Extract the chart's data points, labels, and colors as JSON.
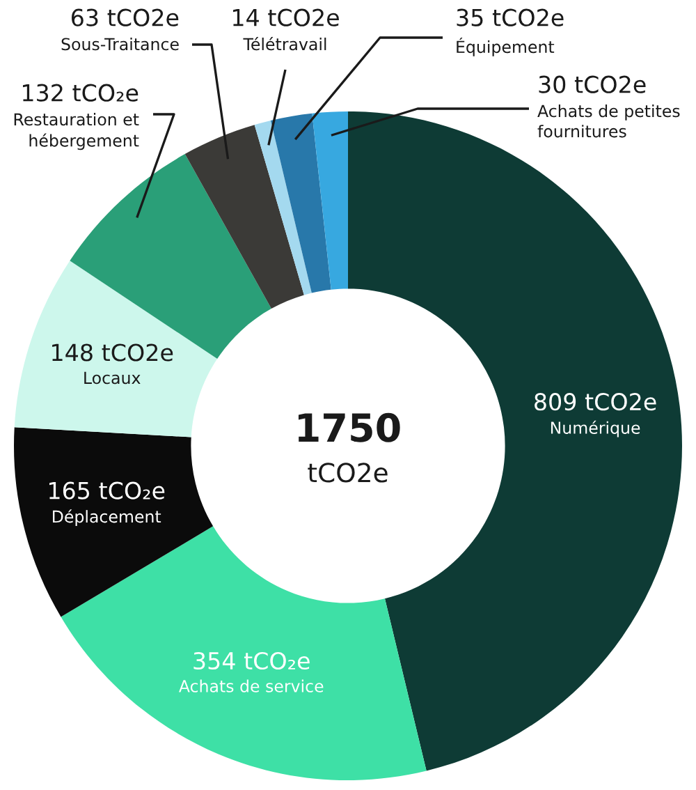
{
  "chart_data": {
    "type": "donut",
    "categories": [
      "Numérique",
      "Achats de service",
      "Déplacement",
      "Locaux",
      "Restauration et\nhébergement",
      "Sous-Traitance",
      "Télétravail",
      "Équipement",
      "Achats de petites\nfournitures"
    ],
    "values": [
      809,
      354,
      165,
      148,
      132,
      63,
      14,
      35,
      30
    ],
    "colors": [
      "#0e3b35",
      "#3ee0a6",
      "#0b0b0b",
      "#cdf7ec",
      "#2a9f78",
      "#3b3a37",
      "#a4d9ef",
      "#2878aa",
      "#37a8e0"
    ],
    "value_labels": [
      "809 tCO2e",
      "354 tCO₂e",
      "165 tCO₂e",
      "148 tCO2e",
      "132 tCO₂e",
      "63 tCO2e",
      "14 tCO2e",
      "35 tCO2e",
      "30 tCO2e"
    ],
    "annotations": [
      "1750",
      "tCO2e"
    ]
  }
}
